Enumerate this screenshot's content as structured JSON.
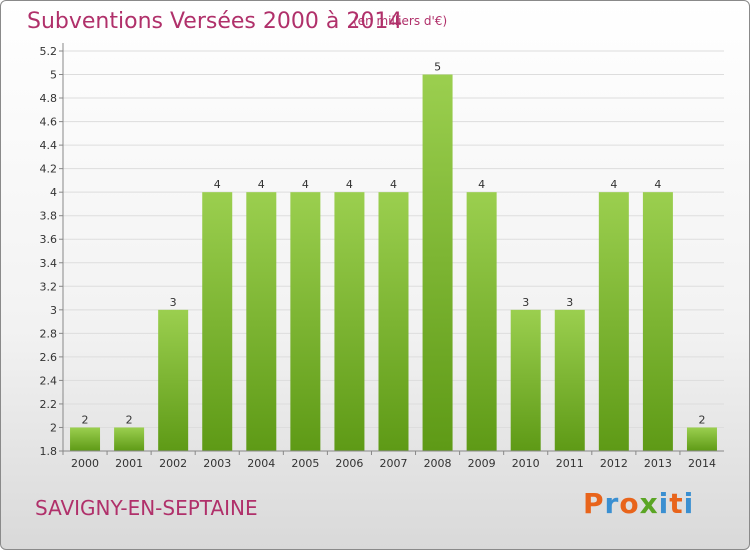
{
  "header": {
    "title": "Subventions Versées 2000 à 2014",
    "unit_note": "(en milliers d'€)"
  },
  "footer": {
    "commune": "SAVIGNY-EN-SEPTAINE",
    "logo_text": "Proxiti"
  },
  "colors": {
    "title": "#b0306a",
    "bar_top": "#9bcf4f",
    "bar_bottom": "#5e9a16",
    "logo_letters": [
      "#e8641b",
      "#3a8fd1",
      "#e8641b",
      "#5aa524",
      "#3a8fd1",
      "#e8641b",
      "#3a8fd1"
    ]
  },
  "chart_data": {
    "type": "bar",
    "categories": [
      "2000",
      "2001",
      "2002",
      "2003",
      "2004",
      "2005",
      "2006",
      "2007",
      "2008",
      "2009",
      "2010",
      "2011",
      "2012",
      "2013",
      "2014"
    ],
    "values": [
      2,
      2,
      3,
      4,
      4,
      4,
      4,
      4,
      5,
      4,
      3,
      3,
      4,
      4,
      2
    ],
    "data_labels": [
      "2",
      "2",
      "3",
      "4",
      "4",
      "4",
      "4",
      "4",
      "5",
      "4",
      "3",
      "3",
      "4",
      "4",
      "2"
    ],
    "ylim": [
      1.8,
      5.2
    ],
    "yticks": [
      "1.8",
      "2",
      "2.2",
      "2.4",
      "2.6",
      "2.8",
      "3",
      "3.2",
      "3.4",
      "3.6",
      "3.8",
      "4",
      "4.2",
      "4.4",
      "4.6",
      "4.8",
      "5",
      "5.2"
    ],
    "grid": true,
    "bar_value_scale": {
      "2": 2.0,
      "3": 3.0,
      "4": 4.0,
      "5": 5.0
    },
    "xlabel": "",
    "ylabel": ""
  }
}
